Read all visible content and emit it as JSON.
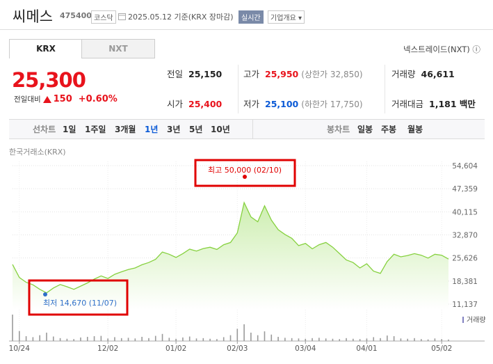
{
  "header": {
    "name": "씨메스",
    "code": "475400",
    "market": "코스닥",
    "date": "2025.05.12",
    "basis": "기준(KRX 장마감)",
    "realtime": "실시간",
    "company_info": "기업개요"
  },
  "tabs": [
    "KRX",
    "NXT"
  ],
  "nxt_link": "넥스트레이드(NXT)",
  "price": {
    "current": "25,300",
    "change_label": "전일대비",
    "change": "150",
    "change_pct": "+0.60%"
  },
  "stats": [
    {
      "label": "전일",
      "value": "25,150"
    },
    {
      "label": "고가",
      "value": "25,950",
      "extra": "(상한가 32,850)"
    },
    {
      "label": "거래량",
      "value": "46,611"
    },
    {
      "label": "시가",
      "value": "25,400"
    },
    {
      "label": "저가",
      "value": "25,100",
      "extra": "(하한가 17,750)"
    },
    {
      "label": "거래대금",
      "value": "1,181 백만"
    }
  ],
  "periods": {
    "line_label": "선차트",
    "line": [
      "1일",
      "1주일",
      "3개월",
      "1년",
      "3년",
      "5년",
      "10년"
    ],
    "selected": "1년",
    "candle_label": "봉차트",
    "candle": [
      "일봉",
      "주봉",
      "월봉"
    ]
  },
  "chart_data": {
    "type": "area",
    "source": "한국거래소(KRX)",
    "color": "#86d13f",
    "categories": [
      null,
      "10/24",
      null,
      null,
      null,
      null,
      null,
      null,
      null,
      null,
      null,
      null,
      null,
      null,
      "12/02",
      null,
      null,
      null,
      null,
      null,
      null,
      null,
      null,
      null,
      "01/02",
      null,
      null,
      null,
      null,
      null,
      null,
      null,
      null,
      "02/03",
      null,
      null,
      null,
      null,
      null,
      null,
      null,
      null,
      null,
      "03/04",
      null,
      null,
      null,
      null,
      null,
      null,
      null,
      null,
      "04/01",
      null,
      null,
      null,
      null,
      null,
      null,
      null,
      null,
      null,
      null,
      "05/02",
      null
    ],
    "values": [
      23600,
      19500,
      18000,
      17200,
      15800,
      14670,
      16200,
      17300,
      16600,
      15800,
      16800,
      17800,
      19000,
      20000,
      19200,
      20500,
      21300,
      22000,
      22500,
      23500,
      24200,
      25200,
      27500,
      26800,
      25800,
      27000,
      28400,
      27800,
      28600,
      29000,
      28300,
      29800,
      30500,
      33500,
      43000,
      38500,
      37000,
      42000,
      37500,
      34500,
      33000,
      31800,
      29500,
      30200,
      28500,
      29800,
      30500,
      29000,
      27000,
      25000,
      24200,
      22500,
      23800,
      21500,
      20800,
      24500,
      26800,
      26000,
      26400,
      27000,
      26500,
      25600,
      26800,
      26500,
      25300
    ],
    "ylim": [
      11137,
      54604
    ],
    "yticks": [
      {
        "value": 11137,
        "label": "11,137"
      },
      {
        "value": 18381,
        "label": "18,381"
      },
      {
        "value": 25626,
        "label": "25,626"
      },
      {
        "value": 32870,
        "label": "32,870"
      },
      {
        "value": 40115,
        "label": "40,115"
      },
      {
        "value": 47359,
        "label": "47,359"
      },
      {
        "value": 54604,
        "label": "54,604"
      }
    ],
    "grid": true,
    "annotations": [
      {
        "label": "최고 50,000 (02/10)",
        "value": 50000,
        "color": "#e00000"
      },
      {
        "label": "최저 14,670 (11/07)",
        "value": 14670,
        "color": "#2f6fc9"
      }
    ],
    "volume": {
      "name": "거래량",
      "color": "#9a9a9a",
      "values": [
        820000,
        310000,
        150000,
        120000,
        180000,
        260000,
        140000,
        90000,
        70000,
        60000,
        110000,
        130000,
        150000,
        160000,
        80000,
        120000,
        90000,
        100000,
        80000,
        130000,
        90000,
        160000,
        220000,
        100000,
        70000,
        110000,
        140000,
        80000,
        90000,
        70000,
        60000,
        120000,
        180000,
        380000,
        520000,
        260000,
        180000,
        300000,
        200000,
        130000,
        100000,
        90000,
        80000,
        70000,
        90000,
        100000,
        80000,
        70000,
        60000,
        90000,
        70000,
        60000,
        80000,
        120000,
        90000,
        170000,
        150000,
        80000,
        70000,
        90000,
        60000,
        50000,
        80000,
        60000,
        46611
      ]
    }
  }
}
